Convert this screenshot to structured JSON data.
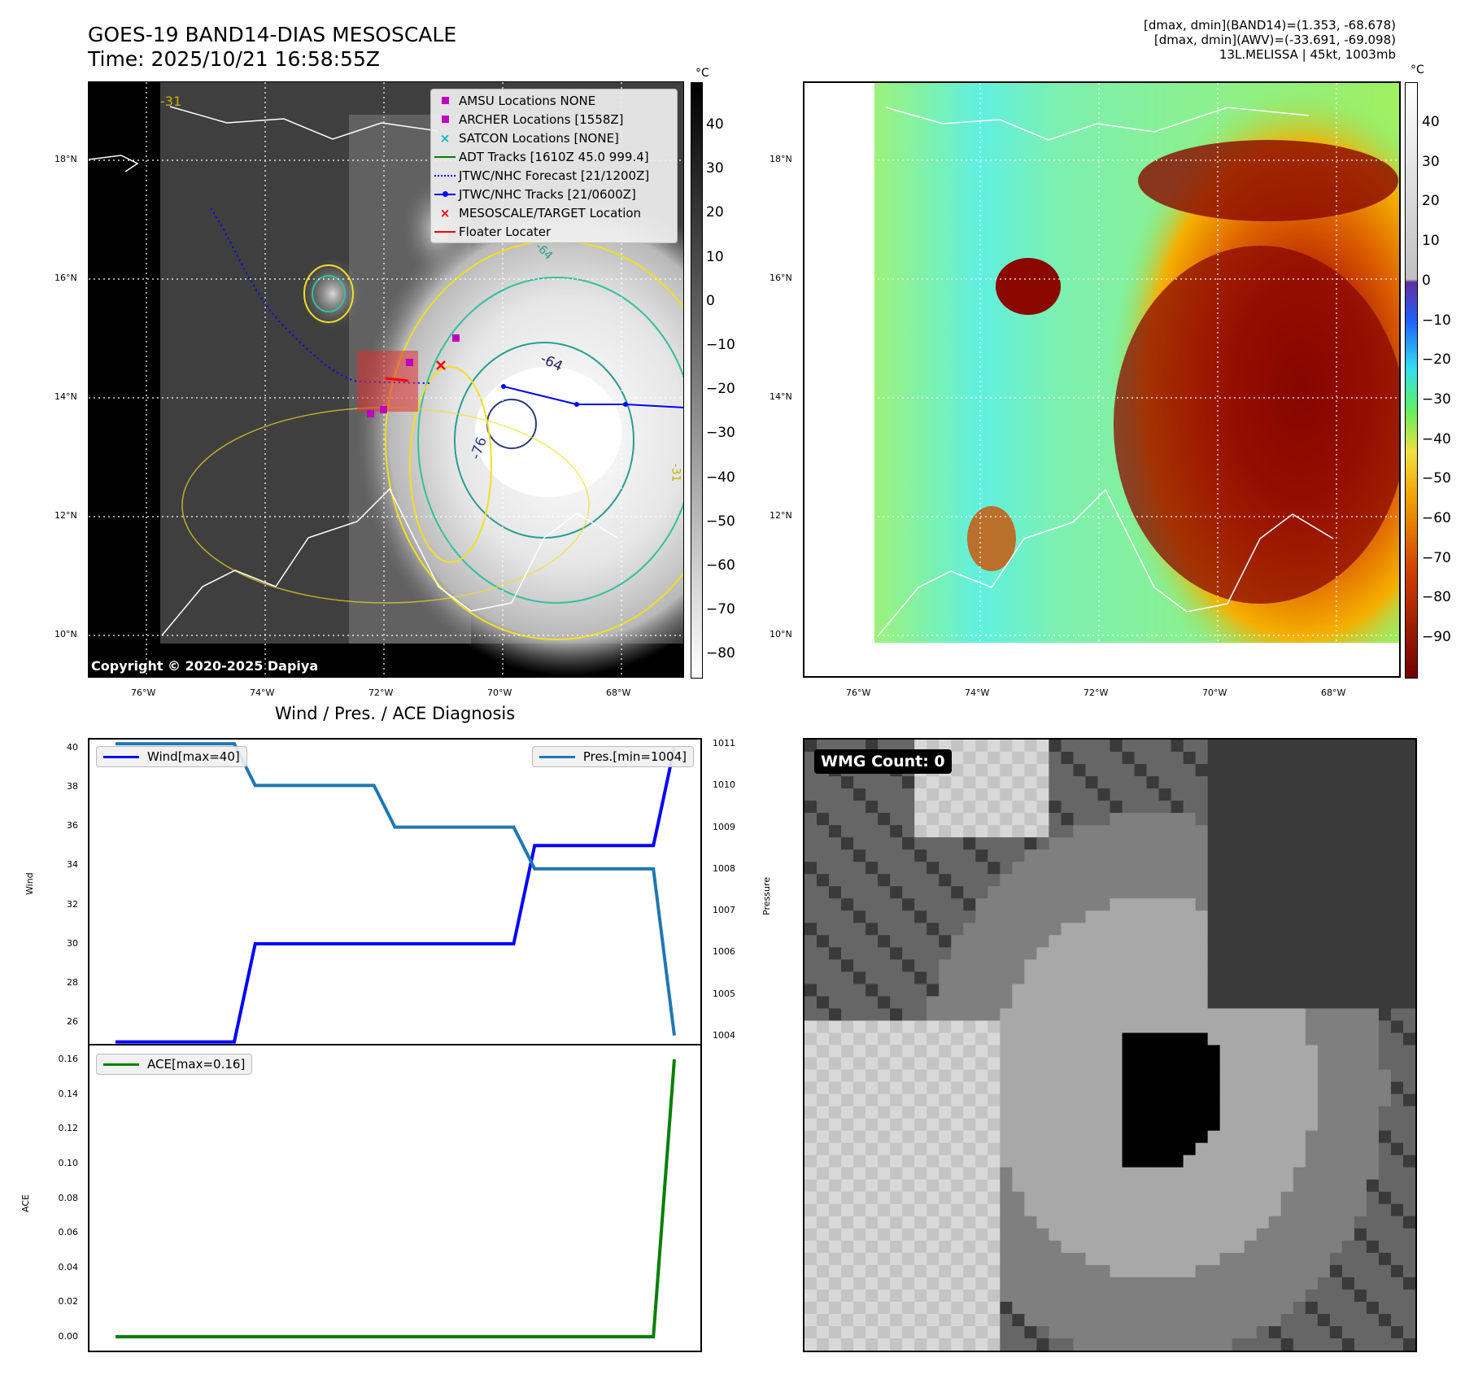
{
  "header": {
    "title_line1": "GOES-19 BAND14-DIAS MESOSCALE",
    "title_line2": "Time: 2025/10/21 16:58:55Z",
    "info_line1": "[dmax, dmin](BAND14)=(1.353, -68.678)",
    "info_line2": "[dmax, dmin](AWV)=(-33.691, -69.098)",
    "info_line3": "13L.MELISSA | 45kt, 1003mb"
  },
  "map_left": {
    "copyright": "Copyright © 2020-2025 Dapiya",
    "lon_ticks": [
      "76°W",
      "74°W",
      "72°W",
      "70°W",
      "68°W"
    ],
    "lat_ticks": [
      "18°N",
      "16°N",
      "14°N",
      "12°N",
      "10°N"
    ],
    "contour_labels": [
      "-31",
      "-64",
      "-76",
      "-64",
      "-31"
    ],
    "legend": [
      {
        "label": "AMSU Locations NONE",
        "symbol": "square",
        "color": "#c000c0"
      },
      {
        "label": "ARCHER Locations [1558Z]",
        "symbol": "square",
        "color": "#c000c0"
      },
      {
        "label": "SATCON Locations [NONE]",
        "symbol": "x",
        "color": "#00b8c8"
      },
      {
        "label": "ADT Tracks [1610Z 45.0 999.4]",
        "symbol": "line",
        "color": "#008000"
      },
      {
        "label": "JTWC/NHC Forecast [21/1200Z]",
        "symbol": "dotted",
        "color": "#0000ff"
      },
      {
        "label": "JTWC/NHC Tracks [21/0600Z]",
        "symbol": "line-dot",
        "color": "#0000ff"
      },
      {
        "label": "MESOSCALE/TARGET Location",
        "symbol": "x",
        "color": "#ff0000"
      },
      {
        "label": "Floater Locater",
        "symbol": "line",
        "color": "#ff0000"
      }
    ],
    "colorbar_unit": "°C",
    "colorbar_ticks": [
      "40",
      "30",
      "20",
      "10",
      "0",
      "−10",
      "−20",
      "−30",
      "−40",
      "−50",
      "−60",
      "−70",
      "−80"
    ]
  },
  "map_right": {
    "lon_ticks": [
      "76°W",
      "74°W",
      "72°W",
      "70°W",
      "68°W"
    ],
    "lat_ticks": [
      "18°N",
      "16°N",
      "14°N",
      "12°N",
      "10°N"
    ],
    "colorbar_unit": "°C",
    "colorbar_ticks": [
      "40",
      "30",
      "20",
      "10",
      "0",
      "−10",
      "−20",
      "−30",
      "−40",
      "−50",
      "−60",
      "−70",
      "−80",
      "−90"
    ]
  },
  "diag": {
    "title": "Wind / Pres. / ACE Diagnosis",
    "wind_ylabel": "Wind",
    "pres_ylabel": "Pressure",
    "ace_ylabel": "ACE",
    "wind_legend": "Wind[max=40]",
    "pres_legend": "Pres.[min=1004]",
    "ace_legend": "ACE[max=0.16]",
    "wind_ticks": [
      "40",
      "38",
      "36",
      "34",
      "32",
      "30",
      "28",
      "26"
    ],
    "pres_ticks": [
      "1011",
      "1010",
      "1009",
      "1008",
      "1007",
      "1006",
      "1005",
      "1004"
    ],
    "ace_ticks": [
      "0.16",
      "0.14",
      "0.12",
      "0.10",
      "0.08",
      "0.06",
      "0.04",
      "0.02",
      "0.00"
    ]
  },
  "wmg": {
    "label": "WMG Count: 0"
  },
  "chart_data": [
    {
      "type": "line",
      "title": "Wind / Pres. / ACE Diagnosis",
      "ylabel": "Wind",
      "ylim": [
        24.9,
        40.4
      ],
      "series": [
        {
          "name": "Wind[max=40]",
          "color": "#0000ff",
          "x": [
            0,
            1,
            2,
            3,
            4,
            5,
            6,
            7,
            8
          ],
          "values": [
            25,
            25,
            30,
            30,
            30,
            30,
            35,
            35,
            40
          ]
        }
      ]
    },
    {
      "type": "line",
      "ylabel": "Pressure",
      "ylim": [
        1003.8,
        1011.1
      ],
      "series": [
        {
          "name": "Pres.[min=1004]",
          "color": "#1f77b4",
          "x": [
            0,
            1,
            2,
            3,
            4,
            5,
            6,
            7,
            8
          ],
          "values": [
            1011,
            1011,
            1010,
            1010,
            1009,
            1009,
            1008,
            1008,
            1004
          ]
        }
      ]
    },
    {
      "type": "line",
      "ylabel": "ACE",
      "ylim": [
        -0.008,
        0.168
      ],
      "series": [
        {
          "name": "ACE[max=0.16]",
          "color": "#008000",
          "x": [
            0,
            1,
            2,
            3,
            4,
            5,
            6,
            7,
            8
          ],
          "values": [
            0,
            0,
            0,
            0,
            0,
            0,
            0,
            0,
            0.16
          ]
        }
      ]
    }
  ]
}
